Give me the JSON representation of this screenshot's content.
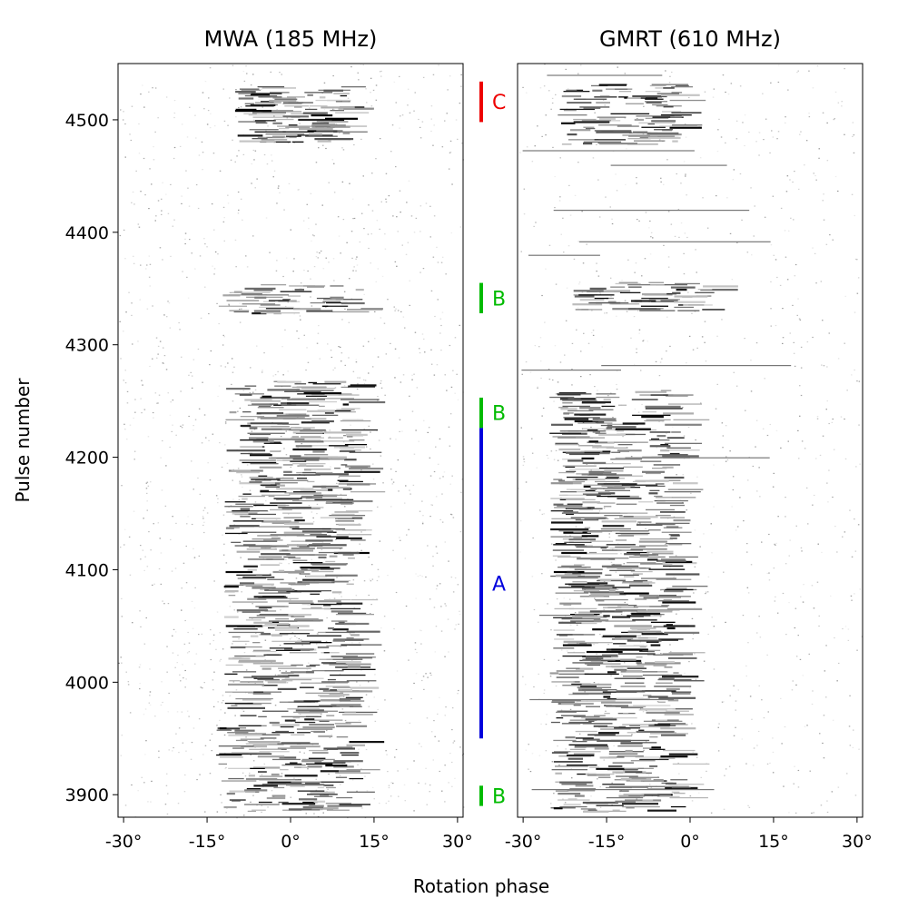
{
  "chart_data": [
    {
      "type": "heatmap",
      "title": "MWA (185 MHz)",
      "xlabel": "Rotation phase",
      "ylabel": "Pulse number",
      "xlim": [
        -31,
        31
      ],
      "ylim": [
        3880,
        4550
      ],
      "x_ticks": [
        -30,
        -15,
        0,
        15,
        30
      ],
      "x_tick_labels": [
        "-30°",
        "-15°",
        "0°",
        "15°",
        "30°"
      ],
      "y_ticks": [
        3900,
        4000,
        4100,
        4200,
        4300,
        4400,
        4500
      ],
      "y_tick_labels": [
        "3900",
        "4000",
        "4100",
        "4200",
        "4300",
        "4400",
        "4500"
      ],
      "colormap": "grayscale (white = no emission, black = strong emission)",
      "emission_windows": [
        {
          "pulse_start": 3885,
          "pulse_end": 3960,
          "phase_min": -14,
          "phase_max": 15
        },
        {
          "pulse_start": 3960,
          "pulse_end": 4268,
          "phase_min": -12,
          "phase_max": 15
        },
        {
          "pulse_start": 4328,
          "pulse_end": 4354,
          "phase_min": -13,
          "phase_max": 18
        },
        {
          "pulse_start": 4480,
          "pulse_end": 4530,
          "phase_min": -10,
          "phase_max": 13
        }
      ],
      "drift_direction": "subpulses drift toward later phase"
    },
    {
      "type": "heatmap",
      "title": "GMRT (610 MHz)",
      "xlabel": "Rotation phase",
      "ylabel": "",
      "xlim": [
        -31,
        31
      ],
      "ylim": [
        3880,
        4550
      ],
      "x_ticks": [
        -30,
        -15,
        0,
        15,
        30
      ],
      "x_tick_labels": [
        "-30°",
        "-15°",
        "0°",
        "15°",
        "30°"
      ],
      "colormap": "grayscale (white = no emission, black = strong emission)",
      "emission_windows": [
        {
          "pulse_start": 3885,
          "pulse_end": 4260,
          "phase_min": -22,
          "phase_max": 6,
          "center": -13
        },
        {
          "pulse_start": 4330,
          "pulse_end": 4356,
          "phase_min": -20,
          "phase_max": 10,
          "center": -8
        },
        {
          "pulse_start": 4478,
          "pulse_end": 4532,
          "phase_min": -22,
          "phase_max": 5,
          "center": -12
        }
      ]
    }
  ],
  "mode_annotations": [
    {
      "label": "C",
      "pulse_start": 4498,
      "pulse_end": 4534,
      "color": "#ee0000"
    },
    {
      "label": "B",
      "pulse_start": 4328,
      "pulse_end": 4355,
      "color": "#00bb00"
    },
    {
      "label": "B",
      "pulse_start": 4226,
      "pulse_end": 4253,
      "color": "#00bb00"
    },
    {
      "label": "A",
      "pulse_start": 3950,
      "pulse_end": 4226,
      "color": "#0000dd"
    },
    {
      "label": "B",
      "pulse_start": 3890,
      "pulse_end": 3908,
      "color": "#00bb00"
    }
  ]
}
